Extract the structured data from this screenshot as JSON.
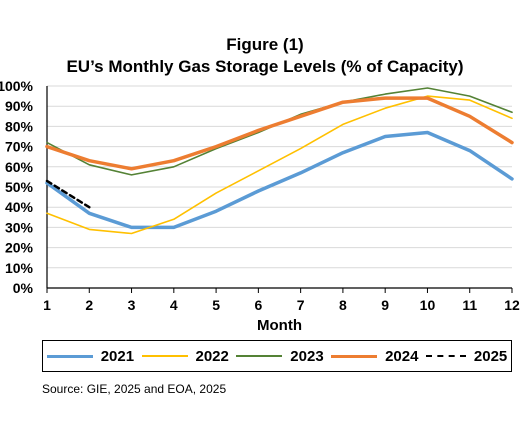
{
  "title_line1": "Figure (1)",
  "title_line2": "EU’s Monthly Gas Storage Levels (% of Capacity)",
  "source": "Source: GIE, 2025 and  EOA, 2025",
  "chart_data": {
    "type": "line",
    "xlabel": "Month",
    "ylabel": "",
    "x": [
      1,
      2,
      3,
      4,
      5,
      6,
      7,
      8,
      9,
      10,
      11,
      12
    ],
    "xlim": [
      1,
      12
    ],
    "ylim": [
      0,
      100
    ],
    "y_ticks": [
      "0%",
      "10%",
      "20%",
      "30%",
      "40%",
      "50%",
      "60%",
      "70%",
      "80%",
      "90%",
      "100%"
    ],
    "grid": "horizontal",
    "legend_position": "bottom",
    "series": [
      {
        "name": "2021",
        "color": "#5B9BD5",
        "width": 3.5,
        "dash": "",
        "values": [
          52,
          37,
          30,
          30,
          38,
          48,
          57,
          67,
          75,
          77,
          68,
          54
        ]
      },
      {
        "name": "2022",
        "color": "#FFC000",
        "width": 1.6,
        "dash": "",
        "values": [
          37,
          29,
          27,
          34,
          47,
          58,
          69,
          81,
          89,
          95,
          93,
          84
        ]
      },
      {
        "name": "2023",
        "color": "#548235",
        "width": 1.6,
        "dash": "",
        "values": [
          72,
          61,
          56,
          60,
          69,
          77,
          86,
          92,
          96,
          99,
          95,
          87
        ]
      },
      {
        "name": "2024",
        "color": "#ED7D31",
        "width": 3.5,
        "dash": "",
        "values": [
          70,
          63,
          59,
          63,
          70,
          78,
          85,
          92,
          94,
          94,
          85,
          72
        ]
      },
      {
        "name": "2025",
        "color": "#000000",
        "width": 2.5,
        "dash": "5,4",
        "values": [
          53,
          40,
          null,
          null,
          null,
          null,
          null,
          null,
          null,
          null,
          null,
          null
        ]
      }
    ]
  }
}
